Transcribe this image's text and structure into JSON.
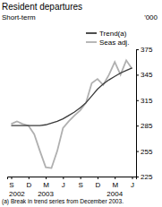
{
  "chart_data": {
    "type": "line",
    "title": "Resident departures",
    "subtitle": "Short-term",
    "ylabel": "'000",
    "footnote": "(a) Break in trend series from December 2003.",
    "categories": [
      "S",
      null,
      null,
      "D",
      null,
      null,
      "M",
      null,
      null,
      "J",
      null,
      null,
      "S",
      null,
      null,
      "D",
      null,
      null,
      "M",
      null,
      null,
      "J"
    ],
    "annotations": [
      {
        "text": "2002",
        "category": 1
      },
      {
        "text": "2003",
        "category": 6
      },
      {
        "text": "2004",
        "category": 18
      }
    ],
    "series": [
      {
        "name": "Trend(a)",
        "color": "#3a3a3a",
        "values": [
          285,
          285,
          285,
          285,
          285,
          285,
          286,
          288,
          290,
          293,
          297,
          301,
          306,
          312,
          320,
          328,
          334,
          339,
          343,
          347,
          350,
          353
        ]
      },
      {
        "name": "Seas adj.",
        "color": "#b0b0b0",
        "values": [
          287,
          290,
          287,
          285,
          275,
          255,
          236,
          235,
          255,
          282,
          290,
          297,
          303,
          312,
          335,
          340,
          333,
          345,
          360,
          345,
          362,
          352
        ]
      }
    ],
    "ylim": [
      225,
      375
    ],
    "yticks": [
      225,
      255,
      285,
      315,
      345,
      375
    ],
    "legend": "top right"
  }
}
